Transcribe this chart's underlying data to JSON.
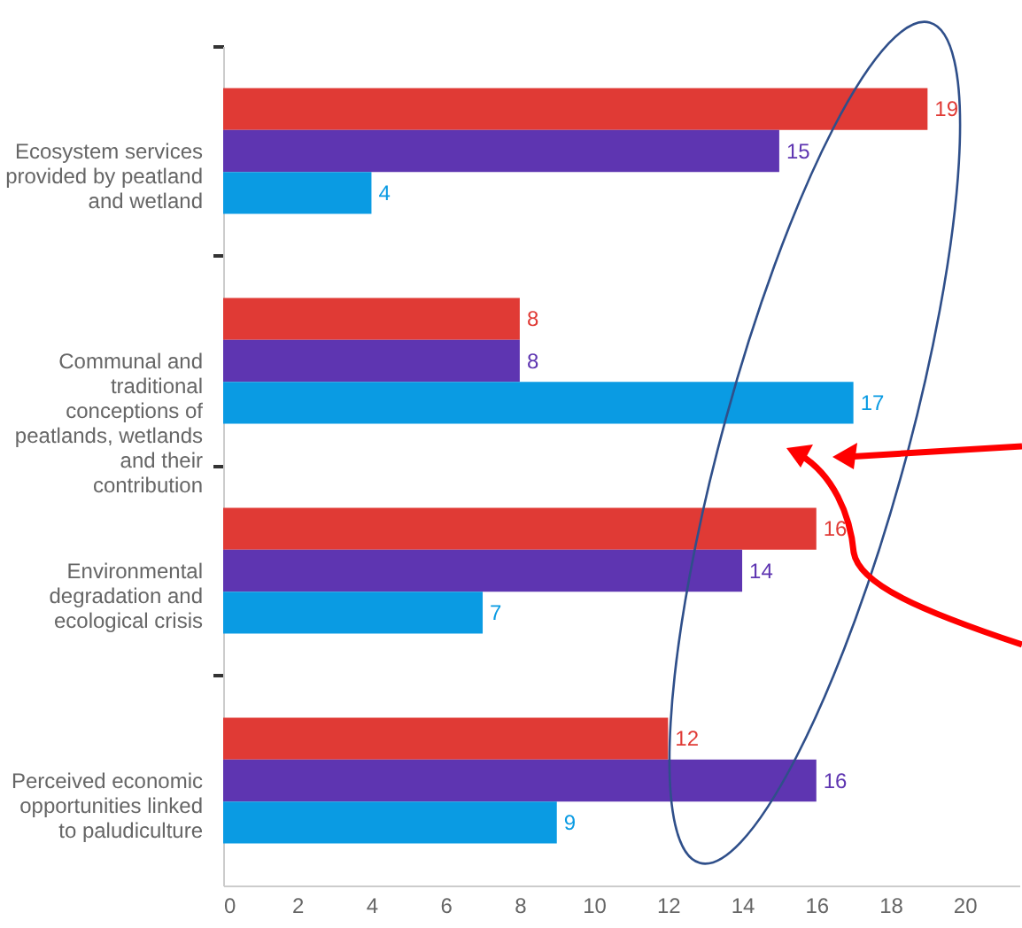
{
  "chart_data": {
    "type": "bar",
    "orientation": "horizontal",
    "categories": [
      "Ecosystem services provided by peatland and wetland",
      "Communal and traditional conceptions of peatlands, wetlands and their contribution",
      "Environmental degradation and ecological crisis",
      "Perceived economic opportunities linked to paludiculture"
    ],
    "series": [
      {
        "color": "#e03a35",
        "values": [
          19,
          8,
          16,
          12
        ]
      },
      {
        "color": "#5e35b1",
        "values": [
          15,
          8,
          14,
          16
        ]
      },
      {
        "color": "#0a9be3",
        "values": [
          4,
          17,
          7,
          9
        ]
      }
    ],
    "xlim": [
      0,
      21.5
    ],
    "xticks": [
      0,
      2,
      4,
      6,
      8,
      10,
      12,
      14,
      16,
      18,
      20
    ],
    "data_labels": true,
    "grid": false,
    "legend": false
  }
}
